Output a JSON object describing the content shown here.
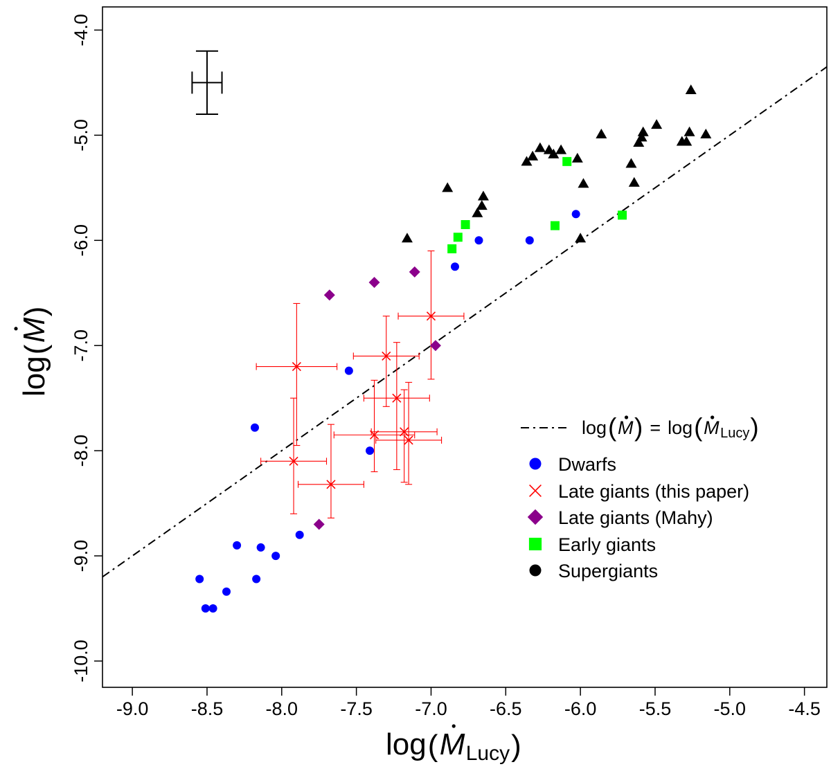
{
  "chart_data": {
    "type": "scatter",
    "xlabel": {
      "prefix": "log(",
      "symbol": "M",
      "sub": "Lucy",
      "suffix": ")"
    },
    "ylabel": {
      "prefix": "log(",
      "symbol": "M",
      "suffix": ")"
    },
    "xlim": [
      -9.2,
      -4.35
    ],
    "ylim": [
      -10.25,
      -3.78
    ],
    "xticks": [
      -9.0,
      -8.5,
      -8.0,
      -7.5,
      -7.0,
      -6.5,
      -6.0,
      -5.5,
      -5.0,
      -4.5
    ],
    "xtick_labels": [
      "-9.0",
      "-8.5",
      "-8.0",
      "-7.5",
      "-7.0",
      "-6.5",
      "-6.0",
      "-5.5",
      "-5.0",
      "-4.5"
    ],
    "yticks": [
      -4.0,
      -5.0,
      -6.0,
      -7.0,
      -8.0,
      -9.0,
      -10.0
    ],
    "ytick_labels": [
      "-4.0",
      "-5.0",
      "-6.0",
      "-7.0",
      "-8.0",
      "-9.0",
      "-10.0"
    ],
    "reference_line": {
      "style": "dash-dot",
      "slope": 1,
      "intercept": 0,
      "legend": {
        "lhs_symbol": "M",
        "equals": "=",
        "rhs_symbol": "M",
        "rhs_sub": "Lucy",
        "open": "log(",
        "close": ")"
      }
    },
    "typical_error_bar": {
      "x": -8.5,
      "y": -4.5,
      "xerr": 0.1,
      "yerr": 0.3
    },
    "legend_position": "center-right",
    "series": [
      {
        "name": "Dwarfs",
        "marker": "circle",
        "color": "#0000ff",
        "points": [
          [
            -8.55,
            -9.22
          ],
          [
            -8.51,
            -9.5
          ],
          [
            -8.46,
            -9.5
          ],
          [
            -8.37,
            -9.34
          ],
          [
            -8.3,
            -8.9
          ],
          [
            -8.17,
            -9.22
          ],
          [
            -8.14,
            -8.92
          ],
          [
            -8.04,
            -9.0
          ],
          [
            -7.88,
            -8.8
          ],
          [
            -8.18,
            -7.78
          ],
          [
            -7.55,
            -7.24
          ],
          [
            -7.41,
            -8.0
          ],
          [
            -6.84,
            -6.25
          ],
          [
            -6.68,
            -6.0
          ],
          [
            -6.34,
            -6.0
          ],
          [
            -6.03,
            -5.75
          ]
        ]
      },
      {
        "name": "Late giants (this paper)",
        "marker": "cross",
        "color": "#ff0000",
        "points": [
          {
            "x": -7.92,
            "y": -8.1,
            "xerr": 0.22,
            "yerr_lo": 0.5,
            "yerr_hi": 0.6
          },
          {
            "x": -7.9,
            "y": -7.2,
            "xerr": 0.27,
            "yerr_lo": 0.75,
            "yerr_hi": 0.6
          },
          {
            "x": -7.67,
            "y": -8.32,
            "xerr": 0.22,
            "yerr_lo": 0.32,
            "yerr_hi": 0.57
          },
          {
            "x": -7.38,
            "y": -7.85,
            "xerr": 0.27,
            "yerr_lo": 0.35,
            "yerr_hi": 0.52
          },
          {
            "x": -7.3,
            "y": -7.1,
            "xerr": 0.22,
            "yerr_lo": 0.48,
            "yerr_hi": 0.38
          },
          {
            "x": -7.23,
            "y": -7.5,
            "xerr": 0.22,
            "yerr_lo": 0.68,
            "yerr_hi": 0.53
          },
          {
            "x": -7.18,
            "y": -7.82,
            "xerr": 0.22,
            "yerr_lo": 0.48,
            "yerr_hi": 0.4
          },
          {
            "x": -7.15,
            "y": -7.9,
            "xerr": 0.22,
            "yerr_lo": 0.42,
            "yerr_hi": 0.55
          },
          {
            "x": -7.0,
            "y": -6.72,
            "xerr": 0.22,
            "yerr_lo": 0.6,
            "yerr_hi": 0.62
          }
        ]
      },
      {
        "name": "Late giants (Mahy)",
        "marker": "diamond",
        "color": "#8b008b",
        "points": [
          [
            -7.68,
            -6.52
          ],
          [
            -7.38,
            -6.4
          ],
          [
            -7.11,
            -6.3
          ],
          [
            -6.97,
            -7.0
          ],
          [
            -7.75,
            -8.7
          ]
        ]
      },
      {
        "name": "Early giants",
        "marker": "square",
        "color": "#00ff00",
        "points": [
          [
            -6.86,
            -6.08
          ],
          [
            -6.82,
            -5.97
          ],
          [
            -6.77,
            -5.85
          ],
          [
            -6.09,
            -5.25
          ],
          [
            -6.17,
            -5.86
          ],
          [
            -5.72,
            -5.76
          ]
        ]
      },
      {
        "name": "Supergiants",
        "marker": "triangle",
        "color": "#000000",
        "legend_marker": "circle",
        "points": [
          [
            -7.16,
            -5.98
          ],
          [
            -6.89,
            -5.5
          ],
          [
            -6.69,
            -5.74
          ],
          [
            -6.66,
            -5.67
          ],
          [
            -6.65,
            -5.58
          ],
          [
            -6.36,
            -5.25
          ],
          [
            -6.32,
            -5.2
          ],
          [
            -6.27,
            -5.12
          ],
          [
            -6.21,
            -5.14
          ],
          [
            -6.18,
            -5.18
          ],
          [
            -6.13,
            -5.14
          ],
          [
            -6.02,
            -5.22
          ],
          [
            -5.98,
            -5.46
          ],
          [
            -6.0,
            -5.98
          ],
          [
            -5.86,
            -4.99
          ],
          [
            -5.66,
            -5.27
          ],
          [
            -5.64,
            -5.45
          ],
          [
            -5.61,
            -5.07
          ],
          [
            -5.59,
            -5.02
          ],
          [
            -5.58,
            -4.97
          ],
          [
            -5.49,
            -4.9
          ],
          [
            -5.32,
            -5.06
          ],
          [
            -5.29,
            -5.06
          ],
          [
            -5.27,
            -4.97
          ],
          [
            -5.26,
            -4.57
          ],
          [
            -5.16,
            -4.99
          ]
        ]
      }
    ]
  }
}
